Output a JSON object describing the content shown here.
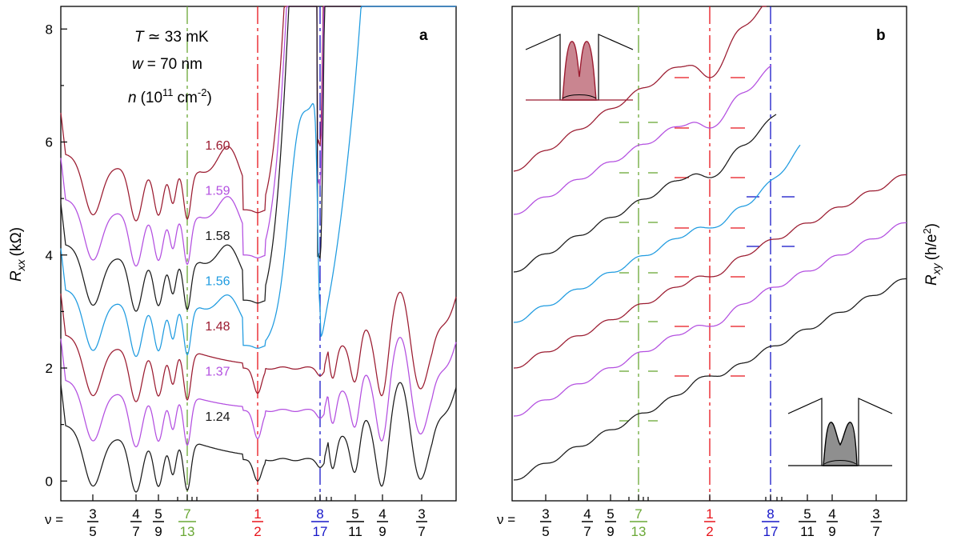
{
  "chart_data": [
    {
      "panel": "a",
      "type": "line",
      "panel_label": "a",
      "ylabel_main": "R",
      "ylabel_sub": "xx",
      "ylabel_unit": "(kΩ)",
      "ylim": [
        -0.35,
        8.4
      ],
      "yticks": [
        "0",
        "2",
        "4",
        "6",
        "8"
      ],
      "ytick_values": [
        0,
        2,
        4,
        6,
        8
      ],
      "annotation": {
        "temperature_var": "T",
        "temperature_text": "≃ 33 mK",
        "width_var": "w",
        "width_text": "= 70 nm",
        "density_var": "n",
        "density_text": "(10",
        "density_exp": "11",
        "density_unit": "cm",
        "density_unit_exp": "-2",
        "density_close": ")"
      },
      "series": [
        {
          "name": "1.60",
          "color": "#9b1b30",
          "offset": 4.8,
          "plateau": 4.8,
          "half_min": 4.75,
          "r817": 5.7,
          "bump": 1.3,
          "trail": "rise-steep"
        },
        {
          "name": "1.59",
          "color": "#b34fe0",
          "offset": 4.0,
          "plateau": 4.0,
          "half_min": 3.95,
          "r817": 5.0,
          "bump": 1.15,
          "trail": "rise-steep"
        },
        {
          "name": "1.58",
          "color": "#1a1a1a",
          "offset": 3.2,
          "plateau": 3.2,
          "half_min": 3.15,
          "r817": 3.7,
          "bump": 1.05,
          "trail": "rise-steep"
        },
        {
          "name": "1.56",
          "color": "#1f9be0",
          "offset": 2.4,
          "plateau": 2.4,
          "half_min": 2.35,
          "r817": 2.55,
          "bump": 0.9,
          "trail": "rise-slow"
        },
        {
          "name": "1.48",
          "color": "#9b1b30",
          "offset": 1.6,
          "plateau": 2.0,
          "half_min": 1.55,
          "r817": 2.1,
          "bump": 0.0,
          "trail": "oscillate"
        },
        {
          "name": "1.37",
          "color": "#b34fe0",
          "offset": 0.8,
          "plateau": 1.25,
          "half_min": 0.75,
          "r817": 1.25,
          "bump": 0.0,
          "trail": "oscillate"
        },
        {
          "name": "1.24",
          "color": "#1a1a1a",
          "offset": 0.0,
          "plateau": 0.38,
          "half_min": 0.0,
          "r817": 0.38,
          "bump": 0.0,
          "trail": "oscillate"
        }
      ]
    },
    {
      "panel": "b",
      "type": "line",
      "panel_label": "b",
      "ylabel_main": "R",
      "ylabel_sub": "xy",
      "ylabel_unit": "(h/e",
      "ylabel_exp": "2",
      "ylabel_close": ")",
      "series": [
        {
          "name": "1.60",
          "color": "#9b1b30"
        },
        {
          "name": "1.59",
          "color": "#b34fe0"
        },
        {
          "name": "1.58",
          "color": "#1a1a1a"
        },
        {
          "name": "1.56",
          "color": "#1f9be0"
        },
        {
          "name": "1.48",
          "color": "#9b1b30"
        },
        {
          "name": "1.37",
          "color": "#b34fe0"
        },
        {
          "name": "1.24",
          "color": "#1a1a1a"
        }
      ]
    }
  ],
  "filling_factor_axis": {
    "prefix": "ν =",
    "fractions": [
      {
        "num": "3",
        "den": "5",
        "value": 0.6,
        "color": "#000000"
      },
      {
        "num": "4",
        "den": "7",
        "value": 0.5714,
        "color": "#000000"
      },
      {
        "num": "5",
        "den": "9",
        "value": 0.5556,
        "color": "#000000"
      },
      {
        "num": "7",
        "den": "13",
        "value": 0.5385,
        "color": "#6aa836"
      },
      {
        "num": "1",
        "den": "2",
        "value": 0.5,
        "color": "#e8141b"
      },
      {
        "num": "8",
        "den": "17",
        "value": 0.4706,
        "color": "#1717c8"
      },
      {
        "num": "5",
        "den": "11",
        "value": 0.4545,
        "color": "#000000"
      },
      {
        "num": "4",
        "den": "9",
        "value": 0.4444,
        "color": "#000000"
      },
      {
        "num": "3",
        "den": "7",
        "value": 0.4286,
        "color": "#000000"
      }
    ]
  },
  "colors": {
    "nu_7_13": "#6aa836",
    "nu_1_2": "#e8141b",
    "nu_8_17": "#1717c8"
  }
}
